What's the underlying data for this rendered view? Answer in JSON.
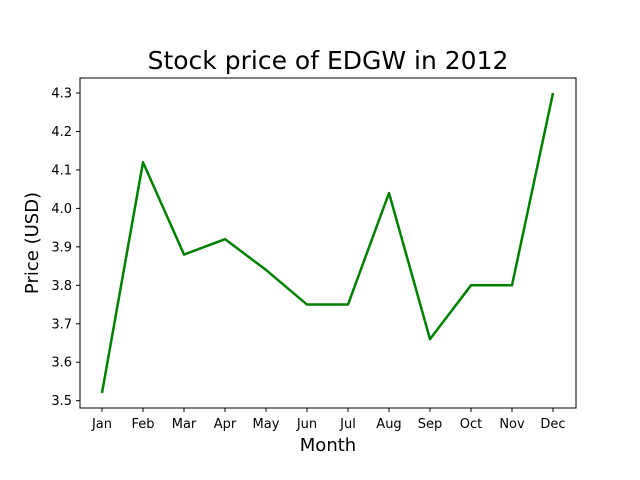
{
  "chart_data": {
    "type": "line",
    "title": "Stock price of EDGW in 2012",
    "xlabel": "Month",
    "ylabel": "Price (USD)",
    "categories": [
      "Jan",
      "Feb",
      "Mar",
      "Apr",
      "May",
      "Jun",
      "Jul",
      "Aug",
      "Sep",
      "Oct",
      "Nov",
      "Dec"
    ],
    "series": [
      {
        "values": [
          3.52,
          4.12,
          3.88,
          3.92,
          3.84,
          3.75,
          3.75,
          4.04,
          3.66,
          3.8,
          3.8,
          4.3
        ],
        "color": "#008000"
      }
    ],
    "yticks": [
      "3.5",
      "3.6",
      "3.7",
      "3.8",
      "3.9",
      "4.0",
      "4.1",
      "4.2",
      "4.3"
    ],
    "ylim": [
      3.481,
      4.339
    ],
    "grid": false,
    "legend": "none"
  }
}
